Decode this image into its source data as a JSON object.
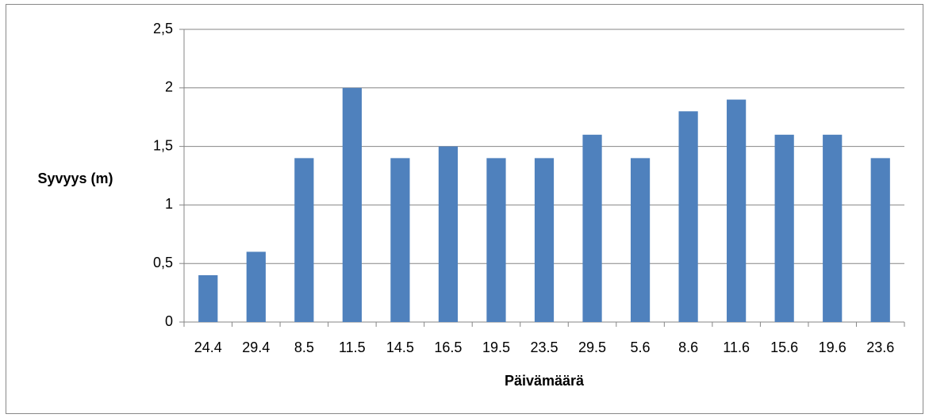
{
  "chart_data": {
    "type": "bar",
    "categories": [
      "24.4",
      "29.4",
      "8.5",
      "11.5",
      "14.5",
      "16.5",
      "19.5",
      "23.5",
      "29.5",
      "5.6",
      "8.6",
      "11.6",
      "15.6",
      "19.6",
      "23.6"
    ],
    "values": [
      0.4,
      0.6,
      1.4,
      2.0,
      1.4,
      1.5,
      1.4,
      1.4,
      1.6,
      1.4,
      1.8,
      1.9,
      1.6,
      1.6,
      1.4
    ],
    "color": "#4f81bd",
    "x_label": "Päivämäärä",
    "y_label": "Syvyys (m)",
    "ylim": [
      0,
      2.5
    ],
    "yticks": [
      0,
      {
        "value": 0.5,
        "label": "0,5"
      },
      1,
      {
        "value": 1.5,
        "label": "1,5"
      },
      2,
      {
        "value": 2.5,
        "label": "2,5"
      }
    ],
    "grid": true
  }
}
